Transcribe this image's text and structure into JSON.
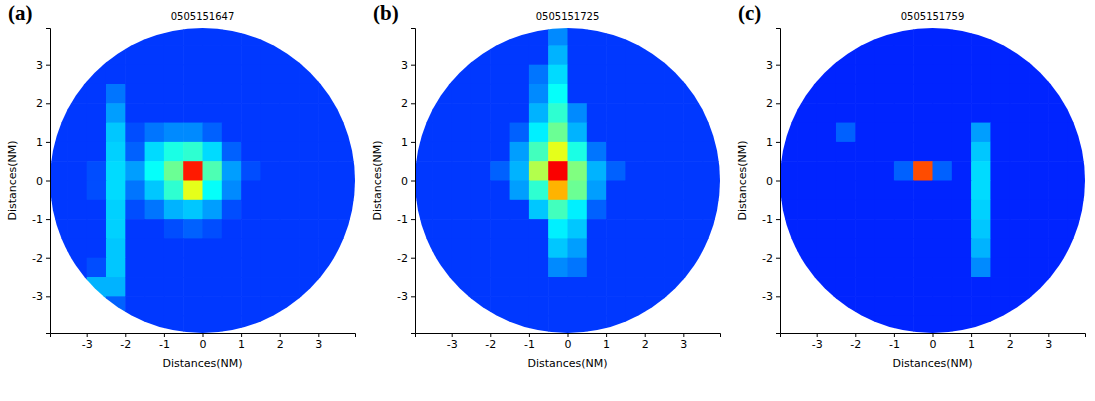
{
  "chart_data": [
    {
      "type": "heatmap",
      "panel_label": "(a)",
      "title": "0505151647",
      "x_label": "Distances(NM)",
      "y_label": "Distances(NM)",
      "xlim": [
        -3.95,
        3.95
      ],
      "ylim": [
        -3.95,
        3.95
      ],
      "xticks": [
        -3,
        -2,
        -1,
        0,
        1,
        2,
        3
      ],
      "yticks": [
        -3,
        -2,
        -1,
        0,
        1,
        2,
        3
      ],
      "zlim": [
        0,
        100
      ],
      "x": [
        -3.75,
        -3.25,
        -2.75,
        -2.25,
        -1.75,
        -1.25,
        -0.75,
        -0.25,
        0.25,
        0.75,
        1.25,
        1.75,
        2.25,
        2.75,
        3.25,
        3.75
      ],
      "y": [
        3.75,
        3.25,
        2.75,
        2.25,
        1.75,
        1.25,
        0.75,
        0.25,
        -0.25,
        -0.75,
        -1.25,
        -1.75,
        -2.25,
        -2.75,
        -3.25,
        -3.75
      ],
      "z": [
        [
          18,
          18,
          18,
          18,
          18,
          18,
          18,
          18,
          18,
          18,
          18,
          18,
          18,
          18,
          18,
          18
        ],
        [
          18,
          18,
          18,
          18,
          18,
          18,
          18,
          18,
          18,
          18,
          18,
          18,
          18,
          18,
          18,
          18
        ],
        [
          18,
          18,
          18,
          18,
          18,
          18,
          18,
          18,
          18,
          18,
          18,
          18,
          18,
          18,
          18,
          18
        ],
        [
          18,
          18,
          18,
          24,
          18,
          18,
          18,
          18,
          18,
          18,
          18,
          18,
          18,
          18,
          18,
          18
        ],
        [
          18,
          18,
          18,
          28,
          18,
          18,
          18,
          18,
          18,
          18,
          18,
          18,
          18,
          18,
          18,
          18
        ],
        [
          18,
          18,
          18,
          32,
          20,
          24,
          26,
          26,
          22,
          18,
          18,
          18,
          18,
          18,
          18,
          18
        ],
        [
          18,
          18,
          18,
          33,
          22,
          34,
          40,
          42,
          34,
          22,
          18,
          18,
          18,
          18,
          18,
          18
        ],
        [
          18,
          18,
          20,
          34,
          28,
          38,
          48,
          85,
          45,
          28,
          20,
          18,
          18,
          18,
          18,
          18
        ],
        [
          18,
          18,
          20,
          34,
          24,
          32,
          42,
          60,
          38,
          26,
          18,
          18,
          18,
          18,
          18,
          18
        ],
        [
          18,
          18,
          18,
          33,
          20,
          24,
          30,
          32,
          28,
          20,
          18,
          18,
          18,
          18,
          18,
          18
        ],
        [
          18,
          18,
          18,
          33,
          18,
          18,
          20,
          22,
          20,
          18,
          18,
          18,
          18,
          18,
          18,
          18
        ],
        [
          18,
          18,
          18,
          32,
          18,
          18,
          18,
          18,
          18,
          18,
          18,
          18,
          18,
          18,
          18,
          18
        ],
        [
          18,
          18,
          20,
          32,
          18,
          18,
          18,
          18,
          18,
          18,
          18,
          18,
          18,
          18,
          18,
          18
        ],
        [
          18,
          18,
          30,
          30,
          18,
          18,
          18,
          18,
          18,
          18,
          18,
          18,
          18,
          18,
          18,
          18
        ],
        [
          18,
          18,
          28,
          22,
          18,
          18,
          18,
          18,
          18,
          18,
          18,
          18,
          18,
          18,
          18,
          18
        ],
        [
          18,
          18,
          18,
          18,
          18,
          18,
          18,
          18,
          18,
          18,
          18,
          18,
          18,
          18,
          18,
          18
        ]
      ]
    },
    {
      "type": "heatmap",
      "panel_label": "(b)",
      "title": "0505151725",
      "x_label": "Distances(NM)",
      "y_label": "Distances(NM)",
      "xlim": [
        -3.95,
        3.95
      ],
      "ylim": [
        -3.95,
        3.95
      ],
      "xticks": [
        -3,
        -2,
        -1,
        0,
        1,
        2,
        3
      ],
      "yticks": [
        -3,
        -2,
        -1,
        0,
        1,
        2,
        3
      ],
      "zlim": [
        0,
        100
      ],
      "x": [
        -3.75,
        -3.25,
        -2.75,
        -2.25,
        -1.75,
        -1.25,
        -0.75,
        -0.25,
        0.25,
        0.75,
        1.25,
        1.75,
        2.25,
        2.75,
        3.25,
        3.75
      ],
      "y": [
        3.75,
        3.25,
        2.75,
        2.25,
        1.75,
        1.25,
        0.75,
        0.25,
        -0.25,
        -0.75,
        -1.25,
        -1.75,
        -2.25,
        -2.75,
        -3.25,
        -3.75
      ],
      "z": [
        [
          18,
          18,
          18,
          18,
          18,
          18,
          18,
          26,
          18,
          18,
          18,
          18,
          18,
          18,
          18,
          18
        ],
        [
          18,
          18,
          18,
          18,
          18,
          18,
          18,
          30,
          18,
          18,
          18,
          18,
          18,
          18,
          18,
          18
        ],
        [
          18,
          18,
          18,
          18,
          18,
          18,
          24,
          34,
          18,
          18,
          18,
          18,
          18,
          18,
          18,
          18
        ],
        [
          18,
          18,
          18,
          18,
          18,
          18,
          26,
          38,
          18,
          18,
          18,
          18,
          18,
          18,
          18,
          18
        ],
        [
          18,
          18,
          18,
          18,
          18,
          18,
          30,
          42,
          26,
          18,
          18,
          18,
          18,
          18,
          18,
          18
        ],
        [
          18,
          18,
          18,
          18,
          18,
          22,
          36,
          48,
          30,
          18,
          18,
          18,
          18,
          18,
          18,
          18
        ],
        [
          18,
          18,
          18,
          18,
          18,
          28,
          44,
          60,
          40,
          24,
          18,
          18,
          18,
          18,
          18,
          18
        ],
        [
          18,
          18,
          18,
          18,
          22,
          30,
          55,
          88,
          50,
          30,
          22,
          18,
          18,
          18,
          18,
          18
        ],
        [
          18,
          18,
          18,
          18,
          18,
          28,
          42,
          70,
          48,
          28,
          18,
          18,
          18,
          18,
          18,
          18
        ],
        [
          18,
          18,
          18,
          18,
          18,
          18,
          32,
          44,
          36,
          22,
          18,
          18,
          18,
          18,
          18,
          18
        ],
        [
          18,
          18,
          18,
          18,
          18,
          18,
          18,
          36,
          32,
          18,
          18,
          18,
          18,
          18,
          18,
          18
        ],
        [
          18,
          18,
          18,
          18,
          18,
          18,
          18,
          32,
          28,
          18,
          18,
          18,
          18,
          18,
          18,
          18
        ],
        [
          18,
          18,
          18,
          18,
          18,
          18,
          18,
          26,
          24,
          18,
          18,
          18,
          18,
          18,
          18,
          18
        ],
        [
          18,
          18,
          18,
          18,
          18,
          18,
          18,
          18,
          18,
          18,
          18,
          18,
          18,
          18,
          18,
          18
        ],
        [
          18,
          18,
          18,
          18,
          18,
          18,
          18,
          18,
          18,
          18,
          18,
          18,
          18,
          18,
          18,
          18
        ],
        [
          18,
          18,
          18,
          18,
          18,
          18,
          18,
          18,
          18,
          18,
          18,
          18,
          18,
          18,
          18,
          18
        ]
      ]
    },
    {
      "type": "heatmap",
      "panel_label": "(c)",
      "title": "0505151759",
      "x_label": "Distances(NM)",
      "y_label": "Distances(NM)",
      "xlim": [
        -3.95,
        3.95
      ],
      "ylim": [
        -3.95,
        3.95
      ],
      "xticks": [
        -3,
        -2,
        -1,
        0,
        1,
        2,
        3
      ],
      "yticks": [
        -3,
        -2,
        -1,
        0,
        1,
        2,
        3
      ],
      "zlim": [
        0,
        100
      ],
      "x": [
        -3.75,
        -3.25,
        -2.75,
        -2.25,
        -1.75,
        -1.25,
        -0.75,
        -0.25,
        0.25,
        0.75,
        1.25,
        1.75,
        2.25,
        2.75,
        3.25,
        3.75
      ],
      "y": [
        3.75,
        3.25,
        2.75,
        2.25,
        1.75,
        1.25,
        0.75,
        0.25,
        -0.25,
        -0.75,
        -1.25,
        -1.75,
        -2.25,
        -2.75,
        -3.25,
        -3.75
      ],
      "z": [
        [
          16,
          16,
          16,
          16,
          16,
          16,
          16,
          16,
          16,
          16,
          16,
          16,
          16,
          16,
          16,
          16
        ],
        [
          16,
          16,
          16,
          16,
          16,
          16,
          16,
          16,
          16,
          16,
          16,
          16,
          16,
          16,
          16,
          16
        ],
        [
          16,
          16,
          16,
          16,
          16,
          16,
          16,
          16,
          16,
          16,
          16,
          16,
          16,
          16,
          16,
          16
        ],
        [
          16,
          16,
          16,
          16,
          16,
          16,
          16,
          16,
          16,
          16,
          16,
          16,
          16,
          16,
          16,
          16
        ],
        [
          16,
          16,
          16,
          16,
          16,
          16,
          16,
          16,
          16,
          16,
          16,
          16,
          16,
          16,
          16,
          16
        ],
        [
          16,
          16,
          16,
          22,
          16,
          16,
          16,
          16,
          16,
          16,
          28,
          16,
          16,
          16,
          16,
          16
        ],
        [
          16,
          16,
          16,
          16,
          16,
          16,
          16,
          16,
          16,
          16,
          32,
          16,
          16,
          16,
          16,
          16
        ],
        [
          16,
          16,
          16,
          16,
          16,
          16,
          22,
          80,
          22,
          16,
          34,
          16,
          16,
          16,
          16,
          16
        ],
        [
          16,
          16,
          16,
          16,
          16,
          16,
          16,
          16,
          16,
          16,
          34,
          16,
          16,
          16,
          16,
          16
        ],
        [
          16,
          16,
          16,
          16,
          16,
          16,
          16,
          16,
          16,
          16,
          33,
          16,
          16,
          16,
          16,
          16
        ],
        [
          16,
          16,
          16,
          16,
          16,
          16,
          16,
          16,
          16,
          16,
          32,
          16,
          16,
          16,
          16,
          16
        ],
        [
          16,
          16,
          16,
          16,
          16,
          16,
          16,
          16,
          16,
          16,
          30,
          16,
          16,
          16,
          16,
          16
        ],
        [
          16,
          16,
          16,
          16,
          16,
          16,
          16,
          16,
          16,
          16,
          26,
          16,
          16,
          16,
          16,
          16
        ],
        [
          16,
          16,
          16,
          16,
          16,
          16,
          16,
          16,
          16,
          16,
          16,
          16,
          16,
          16,
          16,
          16
        ],
        [
          16,
          16,
          16,
          16,
          16,
          16,
          16,
          16,
          16,
          16,
          16,
          16,
          16,
          16,
          16,
          16
        ],
        [
          16,
          16,
          16,
          16,
          16,
          16,
          16,
          16,
          16,
          16,
          16,
          16,
          16,
          16,
          16,
          16
        ]
      ]
    }
  ]
}
